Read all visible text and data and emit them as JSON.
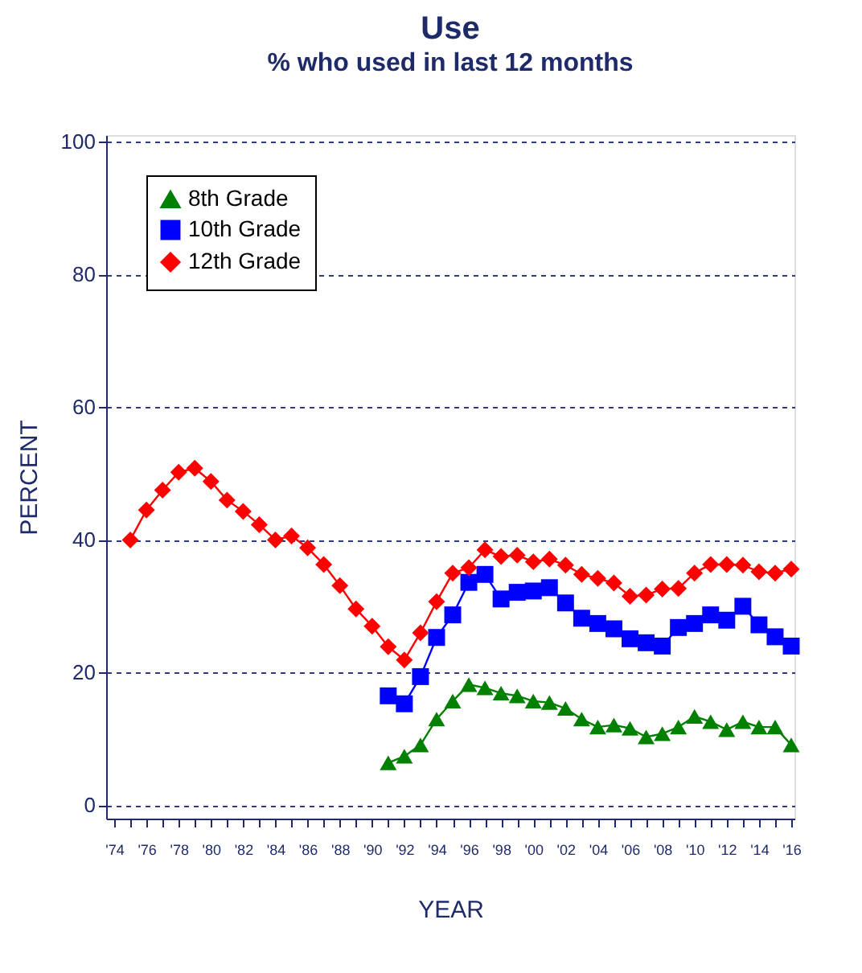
{
  "chart_data": {
    "type": "line",
    "title": "Use",
    "subtitle": "% who used in last 12 months",
    "xlabel": "YEAR",
    "ylabel": "PERCENT",
    "xlim": [
      1973.5,
      2016.2
    ],
    "ylim": [
      -2,
      101
    ],
    "xticks": [
      {
        "value": 1974,
        "label": "'74"
      },
      {
        "value": 1975,
        "label": null
      },
      {
        "value": 1976,
        "label": "'76"
      },
      {
        "value": 1977,
        "label": null
      },
      {
        "value": 1978,
        "label": "'78"
      },
      {
        "value": 1979,
        "label": null
      },
      {
        "value": 1980,
        "label": "'80"
      },
      {
        "value": 1981,
        "label": null
      },
      {
        "value": 1982,
        "label": "'82"
      },
      {
        "value": 1983,
        "label": null
      },
      {
        "value": 1984,
        "label": "'84"
      },
      {
        "value": 1985,
        "label": null
      },
      {
        "value": 1986,
        "label": "'86"
      },
      {
        "value": 1987,
        "label": null
      },
      {
        "value": 1988,
        "label": "'88"
      },
      {
        "value": 1989,
        "label": null
      },
      {
        "value": 1990,
        "label": "'90"
      },
      {
        "value": 1991,
        "label": null
      },
      {
        "value": 1992,
        "label": "'92"
      },
      {
        "value": 1993,
        "label": null
      },
      {
        "value": 1994,
        "label": "'94"
      },
      {
        "value": 1995,
        "label": null
      },
      {
        "value": 1996,
        "label": "'96"
      },
      {
        "value": 1997,
        "label": null
      },
      {
        "value": 1998,
        "label": "'98"
      },
      {
        "value": 1999,
        "label": null
      },
      {
        "value": 2000,
        "label": "'00"
      },
      {
        "value": 2001,
        "label": null
      },
      {
        "value": 2002,
        "label": "'02"
      },
      {
        "value": 2003,
        "label": null
      },
      {
        "value": 2004,
        "label": "'04"
      },
      {
        "value": 2005,
        "label": null
      },
      {
        "value": 2006,
        "label": "'06"
      },
      {
        "value": 2007,
        "label": null
      },
      {
        "value": 2008,
        "label": "'08"
      },
      {
        "value": 2009,
        "label": null
      },
      {
        "value": 2010,
        "label": "'10"
      },
      {
        "value": 2011,
        "label": null
      },
      {
        "value": 2012,
        "label": "'12"
      },
      {
        "value": 2013,
        "label": null
      },
      {
        "value": 2014,
        "label": "'14"
      },
      {
        "value": 2015,
        "label": null
      },
      {
        "value": 2016,
        "label": "'16"
      }
    ],
    "yticks": [
      0,
      20,
      40,
      60,
      80,
      100
    ],
    "grid": "y",
    "legend": "top left",
    "line_style": "solid",
    "series": [
      {
        "name": "8th Grade",
        "color": "#008000",
        "marker": "triangle",
        "x": [
          1991,
          1992,
          1993,
          1994,
          1995,
          1996,
          1997,
          1998,
          1999,
          2000,
          2001,
          2002,
          2003,
          2004,
          2005,
          2006,
          2007,
          2008,
          2009,
          2010,
          2011,
          2012,
          2013,
          2014,
          2015,
          2016
        ],
        "values": [
          6.4,
          7.4,
          9.1,
          13.0,
          15.7,
          18.2,
          17.7,
          16.9,
          16.5,
          15.7,
          15.5,
          14.6,
          13.0,
          11.8,
          12.1,
          11.6,
          10.3,
          10.8,
          11.8,
          13.4,
          12.6,
          11.4,
          12.6,
          11.8,
          11.8,
          9.1
        ]
      },
      {
        "name": "10th Grade",
        "color": "#0000ff",
        "marker": "square",
        "x": [
          1991,
          1992,
          1993,
          1994,
          1995,
          1996,
          1997,
          1998,
          1999,
          2000,
          2001,
          2002,
          2003,
          2004,
          2005,
          2006,
          2007,
          2008,
          2009,
          2010,
          2011,
          2012,
          2013,
          2014,
          2015,
          2016
        ],
        "values": [
          16.5,
          15.3,
          19.4,
          25.3,
          28.7,
          33.6,
          34.8,
          31.1,
          32.1,
          32.3,
          32.8,
          30.5,
          28.2,
          27.4,
          26.6,
          25.1,
          24.5,
          24.0,
          26.8,
          27.4,
          28.7,
          27.9,
          30.0,
          27.2,
          25.4,
          24.0
        ]
      },
      {
        "name": "12th Grade",
        "color": "#ff0000",
        "marker": "diamond",
        "x": [
          1975,
          1976,
          1977,
          1978,
          1979,
          1980,
          1981,
          1982,
          1983,
          1984,
          1985,
          1986,
          1987,
          1988,
          1989,
          1990,
          1991,
          1992,
          1993,
          1994,
          1995,
          1996,
          1997,
          1998,
          1999,
          2000,
          2001,
          2002,
          2003,
          2004,
          2005,
          2006,
          2007,
          2008,
          2009,
          2010,
          2011,
          2012,
          2013,
          2014,
          2015,
          2016
        ],
        "values": [
          40.0,
          44.5,
          47.5,
          50.2,
          50.8,
          48.8,
          46.0,
          44.3,
          42.3,
          40.0,
          40.6,
          38.8,
          36.3,
          33.1,
          29.6,
          27.0,
          23.9,
          21.9,
          26.0,
          30.7,
          35.0,
          35.8,
          38.5,
          37.5,
          37.7,
          36.7,
          37.1,
          36.2,
          34.8,
          34.2,
          33.5,
          31.5,
          31.7,
          32.6,
          32.7,
          35.0,
          36.3,
          36.3,
          36.2,
          35.2,
          35.0,
          35.6
        ]
      }
    ]
  }
}
